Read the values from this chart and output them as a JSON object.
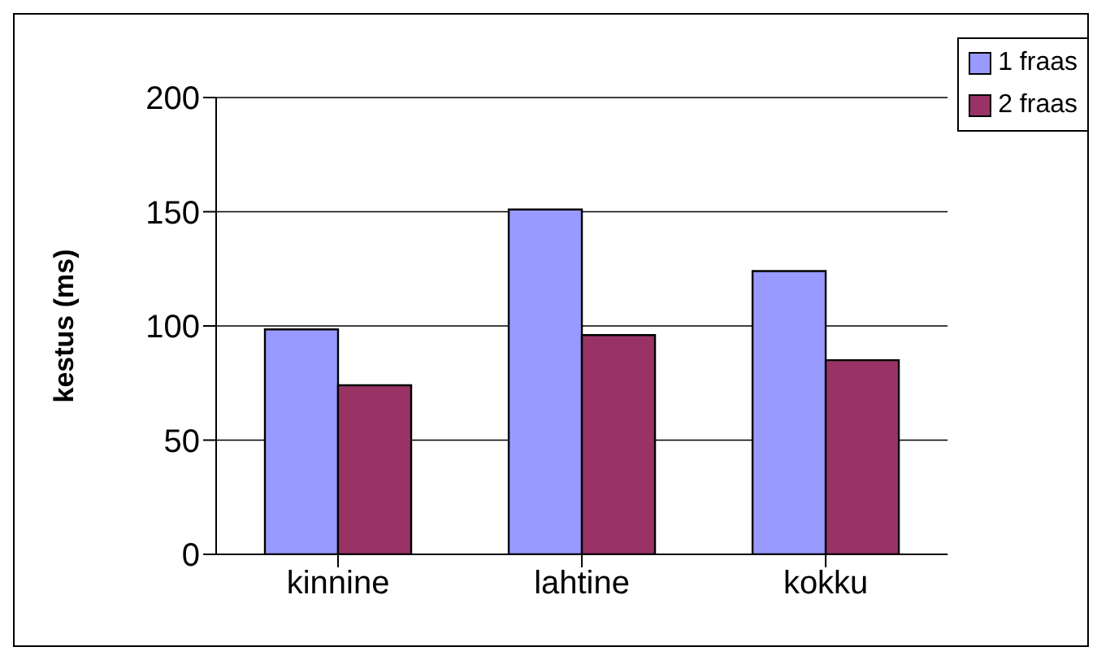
{
  "chart_data": {
    "type": "bar",
    "ylabel": "kestus (ms)",
    "categories": [
      "kinnine",
      "lahtine",
      "kokku"
    ],
    "series": [
      {
        "name": "1 fraas",
        "color": "#9999ff",
        "values": [
          98.5,
          151,
          124
        ]
      },
      {
        "name": "2 fraas",
        "color": "#993366",
        "values": [
          74,
          96,
          85
        ]
      }
    ],
    "ylim": [
      0,
      200
    ],
    "yticks": [
      0,
      50,
      100,
      150,
      200
    ],
    "grid": "y",
    "legend": "top right"
  }
}
